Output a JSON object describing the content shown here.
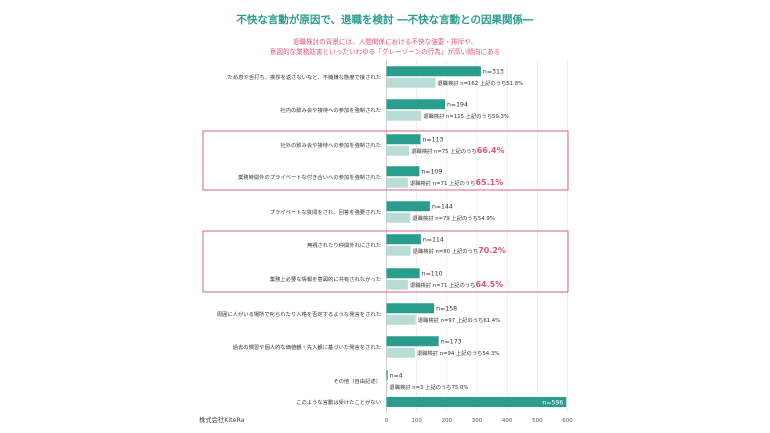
{
  "chart_data": {
    "type": "bar",
    "title": "不快な言動が原因で、退職を検討 ―不快な言動との因果関係―",
    "subtitle_lines": [
      "退職検討の背景には、人間関係における不快な強要・排斥や、",
      "意図的な業務妨害といったいわゆる「グレーゾーンの行為」が高い傾向にある"
    ],
    "xlim": [
      0,
      600
    ],
    "x_ticks": [
      "0",
      "100",
      "200",
      "300",
      "400",
      "500",
      "600"
    ],
    "grid": true,
    "colors": {
      "total": "#2a9d8f",
      "retire": "#b9ddd6",
      "title": "#2a9d8f",
      "subtitle": "#e0557a",
      "highlight": "#e0557a",
      "frame": "#d9537a"
    },
    "categories": [
      "ため息や舌打ち、挨拶を返さないなど、不機嫌な態度で接された",
      "社内の飲み会や接待への参加を強制された",
      "社外の飲み会や接待への参加を強制された",
      "業務時間外のプライベートな付き合いへの参加を強制された",
      "プライベートな質問をされ、回答を強要された",
      "無視されたり仲間外れにされた",
      "業務上必要な情報を意図的に共有されなかった",
      "周囲に人がいる場所で叱られたり人格を否定するような発言をされた",
      "過去の慣習や個人的な価値観・先入観に基づいた発言をされた",
      "その他（自由記述）",
      "このような言動は受けたことがない"
    ],
    "series": [
      {
        "values": [
          313,
          194,
          113,
          109,
          144,
          114,
          110,
          158,
          173,
          4,
          596
        ],
        "labels": [
          "n=313",
          "n=194",
          "n=113",
          "n=109",
          "n=144",
          "n=114",
          "n=110",
          "n=158",
          "n=173",
          "n=4",
          "n=596"
        ]
      },
      {
        "values": [
          162,
          115,
          75,
          71,
          79,
          80,
          71,
          97,
          94,
          3,
          null
        ],
        "labels": [
          "退職検討 n=162 上記のうち51.8%",
          "退職検討 n=115 上記のうち59.3%",
          "退職検討 n=75 上記のうち",
          "退職検討 n=71 上記のうち",
          "退職検討 n=79 上記のうち54.9%",
          "退職検討 n=80 上記のうち",
          "退職検討 n=71 上記のうち",
          "退職検討 n=97 上記のうち61.4%",
          "退職検討 n=94 上記のうち54.3%",
          "退職検討 n=3 上記のうち75.0%",
          null
        ],
        "highlight_pcts": [
          null,
          null,
          "66.4%",
          "65.1%",
          null,
          "70.2%",
          "64.5%",
          null,
          null,
          null,
          null
        ]
      }
    ],
    "highlight_groups": [
      [
        2,
        3
      ],
      [
        5,
        6
      ]
    ],
    "source": "株式会社KiteRa"
  }
}
